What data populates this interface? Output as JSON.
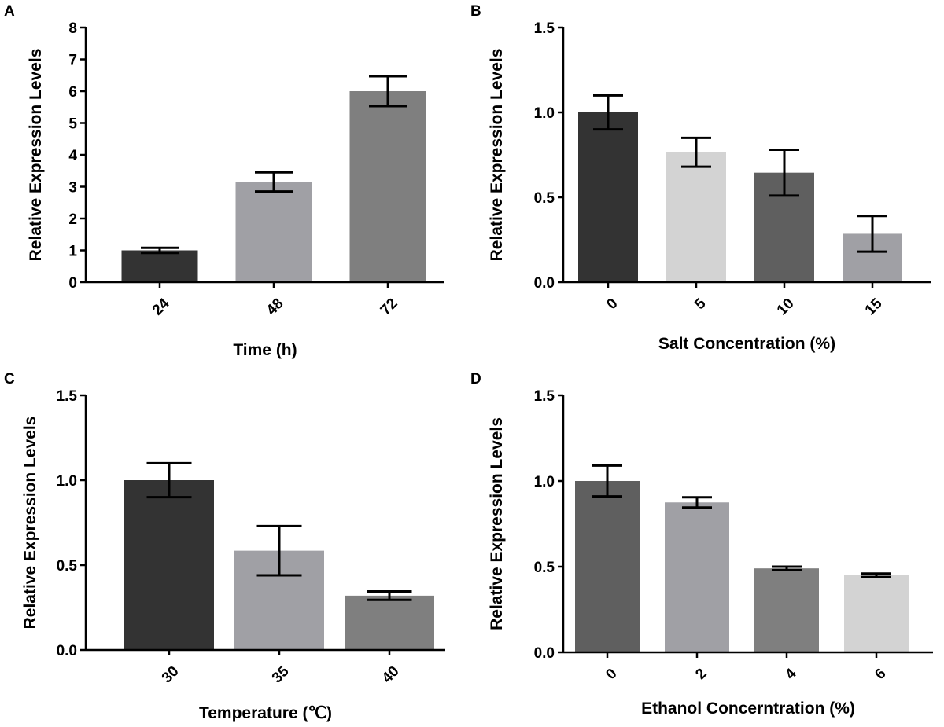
{
  "chart_data": [
    {
      "panel": "A",
      "type": "bar",
      "categories": [
        "24",
        "48",
        "72"
      ],
      "values": [
        1.0,
        3.15,
        6.0
      ],
      "errors": [
        0.08,
        0.3,
        0.47
      ],
      "colors": [
        "#333333",
        "#a0a0a5",
        "#7f7f7f"
      ],
      "xlabel": "Time (h)",
      "ylabel": "Relative Expression Levels",
      "ylim": [
        0,
        8
      ],
      "yticks": [
        "0",
        "1",
        "2",
        "3",
        "4",
        "5",
        "6",
        "7",
        "8"
      ],
      "rotate_xticks": true
    },
    {
      "panel": "B",
      "type": "bar",
      "categories": [
        "0",
        "5",
        "10",
        "15"
      ],
      "values": [
        1.0,
        0.765,
        0.645,
        0.285
      ],
      "errors": [
        0.1,
        0.085,
        0.135,
        0.105
      ],
      "colors": [
        "#333333",
        "#d3d3d3",
        "#5f5f5f",
        "#a0a0a5"
      ],
      "xlabel": "Salt Concentration (%)",
      "ylabel": "Relative Expression Levels",
      "ylim": [
        0,
        1.5
      ],
      "yticks": [
        "0.0",
        "0.5",
        "1.0",
        "1.5"
      ],
      "rotate_xticks": true
    },
    {
      "panel": "C",
      "type": "bar",
      "categories": [
        "30",
        "35",
        "40"
      ],
      "values": [
        1.0,
        0.585,
        0.32
      ],
      "errors": [
        0.1,
        0.145,
        0.025
      ],
      "colors": [
        "#333333",
        "#a0a0a5",
        "#7f7f7f"
      ],
      "xlabel": "Temperature (℃)",
      "ylabel": "Relative Expression Levels",
      "ylim": [
        0,
        1.5
      ],
      "yticks": [
        "0.0",
        "0.5",
        "1.0",
        "1.5"
      ],
      "rotate_xticks": true
    },
    {
      "panel": "D",
      "type": "bar",
      "categories": [
        "0",
        "2",
        "4",
        "6"
      ],
      "values": [
        1.0,
        0.875,
        0.49,
        0.45
      ],
      "errors": [
        0.09,
        0.03,
        0.01,
        0.01
      ],
      "colors": [
        "#5f5f5f",
        "#a0a0a5",
        "#7f7f7f",
        "#d3d3d3"
      ],
      "xlabel": "Ethanol Concerntration (%)",
      "ylabel": "Relative Expression Levels",
      "ylim": [
        0,
        1.5
      ],
      "yticks": [
        "0.0",
        "0.5",
        "1.0",
        "1.5"
      ],
      "rotate_xticks": true
    }
  ]
}
